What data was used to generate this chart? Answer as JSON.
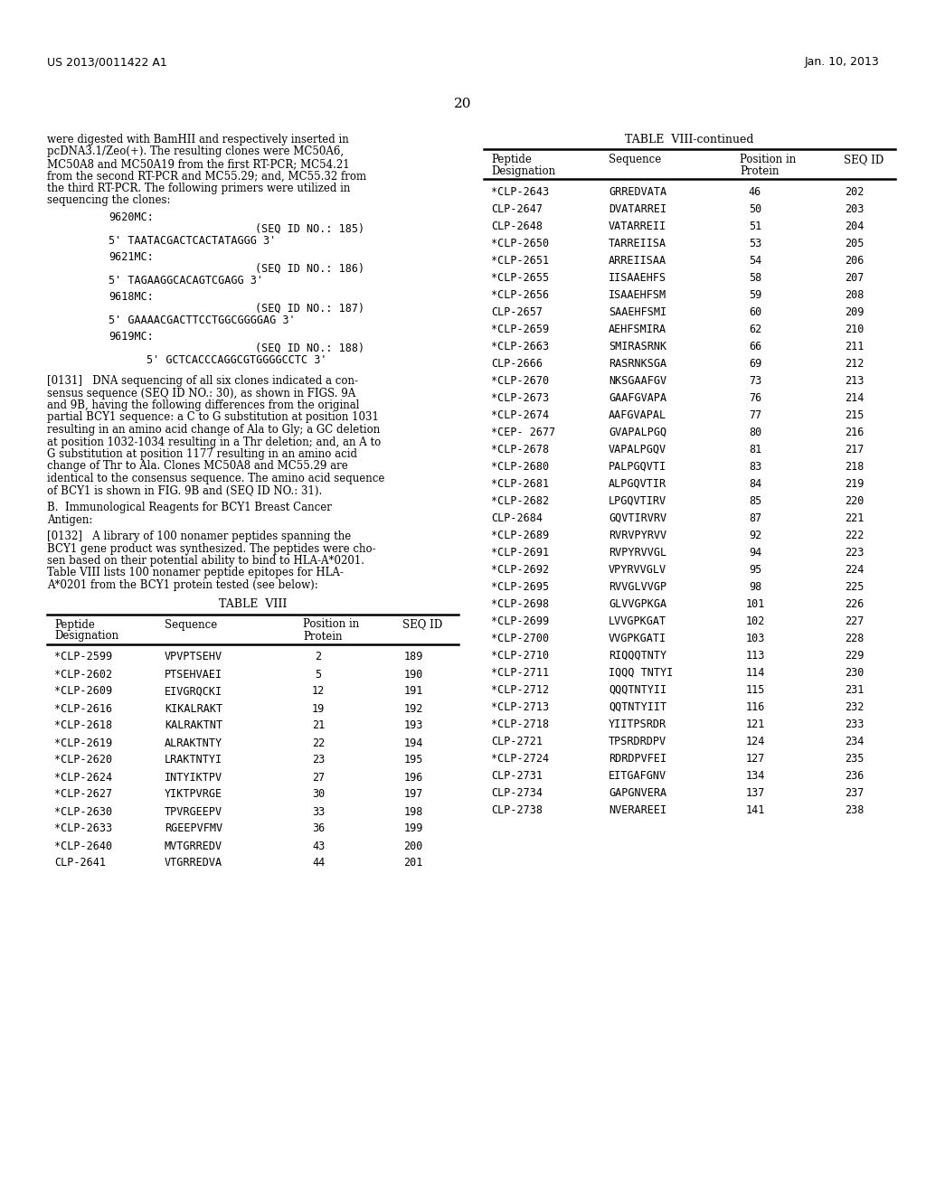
{
  "page_header_left": "US 2013/0011422 A1",
  "page_header_right": "Jan. 10, 2013",
  "page_number": "20",
  "bg_color": "#ffffff",
  "left_col_rows": [
    [
      "*CLP-2599",
      "VPVPTSEHV",
      "2",
      "189"
    ],
    [
      "*CLP-2602",
      "PTSEHVAEI",
      "5",
      "190"
    ],
    [
      "*CLP-2609",
      "EIVGRQCKI",
      "12",
      "191"
    ],
    [
      "*CLP-2616",
      "KIKALRAKT",
      "19",
      "192"
    ],
    [
      "*CLP-2618",
      "KALRAKTNT",
      "21",
      "193"
    ],
    [
      "*CLP-2619",
      "ALRAKTNTY",
      "22",
      "194"
    ],
    [
      "*CLP-2620",
      "LRAKTNTYI",
      "23",
      "195"
    ],
    [
      "*CLP-2624",
      "INTYIKTPV",
      "27",
      "196"
    ],
    [
      "*CLP-2627",
      "YIKTPVRGE",
      "30",
      "197"
    ],
    [
      "*CLP-2630",
      "TPVRGEEPV",
      "33",
      "198"
    ],
    [
      "*CLP-2633",
      "RGEEPVFMV",
      "36",
      "199"
    ],
    [
      "*CLP-2640",
      "MVTGRREDV",
      "43",
      "200"
    ],
    [
      "CLP-2641",
      "VTGRREDVA",
      "44",
      "201"
    ]
  ],
  "right_col_rows": [
    [
      "*CLP-2643",
      "GRREDVATA",
      "46",
      "202"
    ],
    [
      "CLP-2647",
      "DVATARREI",
      "50",
      "203"
    ],
    [
      "CLP-2648",
      "VATARREII",
      "51",
      "204"
    ],
    [
      "*CLP-2650",
      "TARREIISA",
      "53",
      "205"
    ],
    [
      "*CLP-2651",
      "ARREIISAA",
      "54",
      "206"
    ],
    [
      "*CLP-2655",
      "IISAAEHFS",
      "58",
      "207"
    ],
    [
      "*CLP-2656",
      "ISAAEHFSM",
      "59",
      "208"
    ],
    [
      "CLP-2657",
      "SAAEHFSMI",
      "60",
      "209"
    ],
    [
      "*CLP-2659",
      "AEHFSMIRA",
      "62",
      "210"
    ],
    [
      "*CLP-2663",
      "SMIRASRNK",
      "66",
      "211"
    ],
    [
      "CLP-2666",
      "RASRNKSGA",
      "69",
      "212"
    ],
    [
      "*CLP-2670",
      "NKSGAAFGV",
      "73",
      "213"
    ],
    [
      "*CLP-2673",
      "GAAFGVAPA",
      "76",
      "214"
    ],
    [
      "*CLP-2674",
      "AAFGVAPAL",
      "77",
      "215"
    ],
    [
      "*CEP- 2677",
      "GVAPALPGQ",
      "80",
      "216"
    ],
    [
      "*CLP-2678",
      "VAPALPGQV",
      "81",
      "217"
    ],
    [
      "*CLP-2680",
      "PALPGQVTI",
      "83",
      "218"
    ],
    [
      "*CLP-2681",
      "ALPGQVTIR",
      "84",
      "219"
    ],
    [
      "*CLP-2682",
      "LPGQVTIRV",
      "85",
      "220"
    ],
    [
      "CLP-2684",
      "GQVTIRVRV",
      "87",
      "221"
    ],
    [
      "*CLP-2689",
      "RVRVPYRVV",
      "92",
      "222"
    ],
    [
      "*CLP-2691",
      "RVPYRVVGL",
      "94",
      "223"
    ],
    [
      "*CLP-2692",
      "VPYRVVGLV",
      "95",
      "224"
    ],
    [
      "*CLP-2695",
      "RVVGLVVGP",
      "98",
      "225"
    ],
    [
      "*CLP-2698",
      "GLVVGPKGA",
      "101",
      "226"
    ],
    [
      "*CLP-2699",
      "LVVGPKGAT",
      "102",
      "227"
    ],
    [
      "*CLP-2700",
      "VVGPKGATI",
      "103",
      "228"
    ],
    [
      "*CLP-2710",
      "RIQQQTNTY",
      "113",
      "229"
    ],
    [
      "*CLP-2711",
      "IQQQ TNTYI",
      "114",
      "230"
    ],
    [
      "*CLP-2712",
      "QQQTNTYII",
      "115",
      "231"
    ],
    [
      "*CLP-2713",
      "QQTNTYIIT",
      "116",
      "232"
    ],
    [
      "*CLP-2718",
      "YIITPSRDR",
      "121",
      "233"
    ],
    [
      "CLP-2721",
      "TPSRDRDPV",
      "124",
      "234"
    ],
    [
      "*CLP-2724",
      "RDRDPVFEI",
      "127",
      "235"
    ],
    [
      "CLP-2731",
      "EITGAFGNV",
      "134",
      "236"
    ],
    [
      "CLP-2734",
      "GAPGNVERA",
      "137",
      "237"
    ],
    [
      "CLP-2738",
      "NVERAREEI",
      "141",
      "238"
    ]
  ]
}
